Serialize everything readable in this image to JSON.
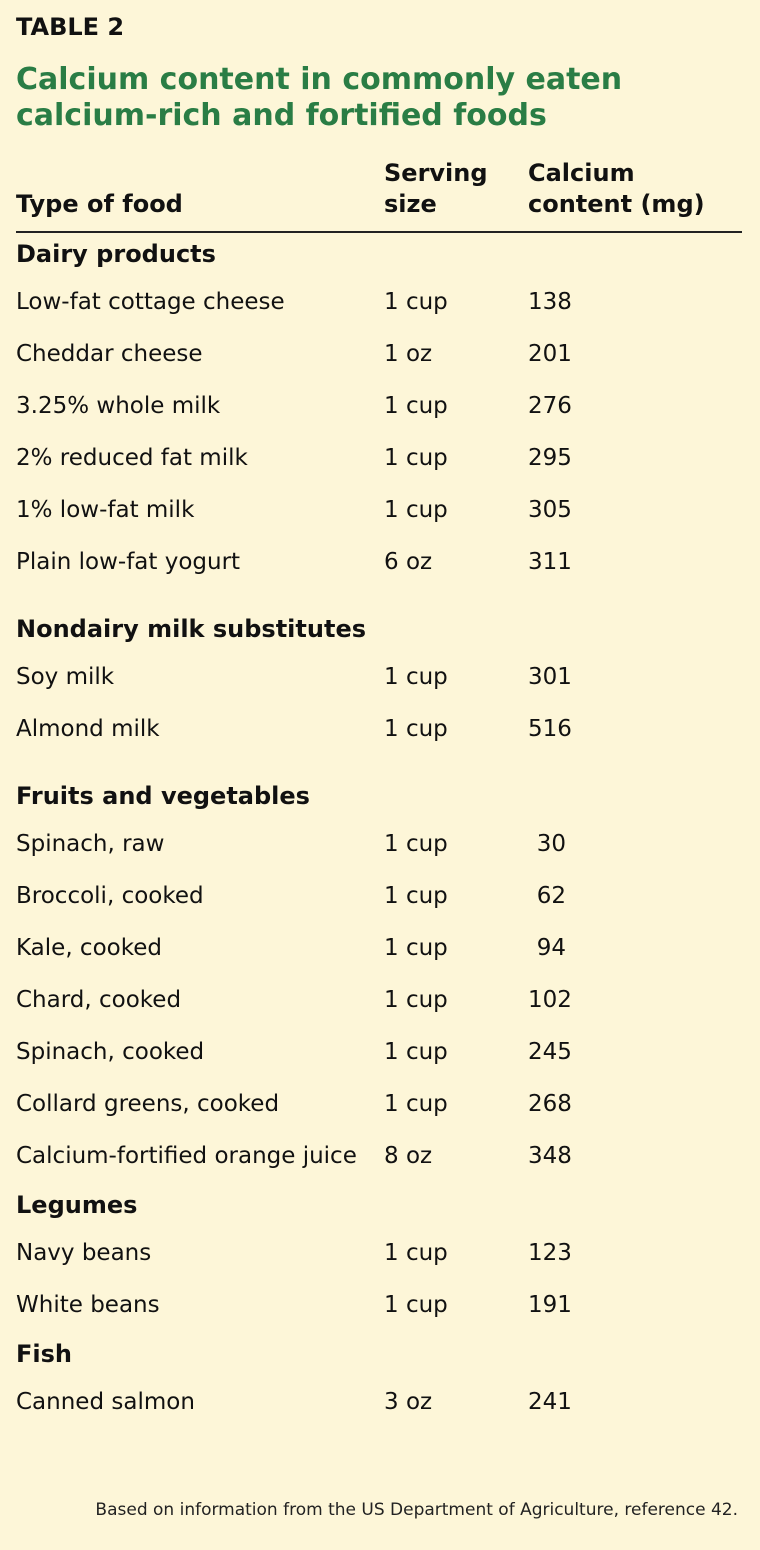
{
  "table_label": "TABLE 2",
  "title": "Calcium content in commonly eaten calcium-rich and fortified foods",
  "columns": {
    "food": "Type of food",
    "serving": "Serving size",
    "calcium": "Calcium content (mg)"
  },
  "sections": [
    {
      "title": "Dairy products",
      "rows": [
        {
          "food": "Low-fat cottage cheese",
          "serving": "1 cup",
          "calcium": "138"
        },
        {
          "food": "Cheddar cheese",
          "serving": "1 oz",
          "calcium": "201"
        },
        {
          "food": "3.25% whole milk",
          "serving": "1 cup",
          "calcium": "276"
        },
        {
          "food": "2% reduced fat milk",
          "serving": "1 cup",
          "calcium": "295"
        },
        {
          "food": "1% low-fat milk",
          "serving": "1 cup",
          "calcium": "305"
        },
        {
          "food": "Plain low-fat yogurt",
          "serving": "6 oz",
          "calcium": "311"
        }
      ]
    },
    {
      "title": "Nondairy milk substitutes",
      "rows": [
        {
          "food": "Soy milk",
          "serving": "1 cup",
          "calcium": "301"
        },
        {
          "food": "Almond milk",
          "serving": "1 cup",
          "calcium": "516"
        }
      ]
    },
    {
      "title": "Fruits and vegetables",
      "rows": [
        {
          "food": "Spinach, raw",
          "serving": "1 cup",
          "calcium": "30"
        },
        {
          "food": "Broccoli, cooked",
          "serving": "1 cup",
          "calcium": "62"
        },
        {
          "food": "Kale, cooked",
          "serving": "1 cup",
          "calcium": "94"
        },
        {
          "food": "Chard, cooked",
          "serving": "1 cup",
          "calcium": "102"
        },
        {
          "food": "Spinach, cooked",
          "serving": "1 cup",
          "calcium": "245"
        },
        {
          "food": "Collard greens, cooked",
          "serving": "1 cup",
          "calcium": "268"
        },
        {
          "food": "Calcium-fortified orange juice",
          "serving": "8 oz",
          "calcium": "348"
        }
      ]
    },
    {
      "title": "Legumes",
      "rows": [
        {
          "food": "Navy beans",
          "serving": "1 cup",
          "calcium": "123"
        },
        {
          "food": "White beans",
          "serving": "1 cup",
          "calcium": "191"
        }
      ]
    },
    {
      "title": "Fish",
      "rows": [
        {
          "food": "Canned salmon",
          "serving": "3 oz",
          "calcium": "241"
        }
      ]
    }
  ],
  "footnote": "Based on information from the US Department of Agriculture, reference 42.",
  "colors": {
    "background": "#fdf6d8",
    "title": "#2a7d45"
  }
}
